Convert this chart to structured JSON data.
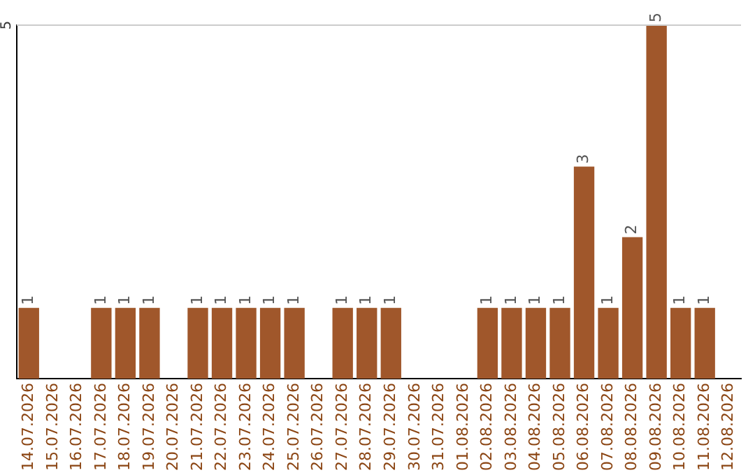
{
  "chart_data": {
    "type": "bar",
    "categories": [
      "14.07.2026",
      "15.07.2026",
      "16.07.2026",
      "17.07.2026",
      "18.07.2026",
      "19.07.2026",
      "20.07.2026",
      "21.07.2026",
      "22.07.2026",
      "23.07.2026",
      "24.07.2026",
      "25.07.2026",
      "26.07.2026",
      "27.07.2026",
      "28.07.2026",
      "29.07.2026",
      "30.07.2026",
      "31.07.2026",
      "01.08.2026",
      "02.08.2026",
      "03.08.2026",
      "04.08.2026",
      "05.08.2026",
      "06.08.2026",
      "07.08.2026",
      "08.08.2026",
      "09.08.2026",
      "10.08.2026",
      "11.08.2026",
      "12.08.2026"
    ],
    "values": [
      1,
      0,
      0,
      1,
      1,
      1,
      0,
      1,
      1,
      1,
      1,
      1,
      0,
      1,
      1,
      1,
      0,
      0,
      0,
      1,
      1,
      1,
      1,
      3,
      1,
      2,
      5,
      1,
      1,
      0
    ],
    "value_labels": [
      "1",
      null,
      null,
      "1",
      "1",
      "1",
      null,
      "1",
      "1",
      "1",
      "1",
      "1",
      null,
      "1",
      "1",
      "1",
      null,
      null,
      null,
      "1",
      "1",
      "1",
      "1",
      "3",
      "1",
      "2",
      "5",
      "1",
      "1",
      null
    ],
    "color": "#a0572b",
    "ref_lines": [
      {
        "axis": "y",
        "value": 5,
        "label": "5",
        "color": "#cccccc"
      }
    ],
    "legend": false
  }
}
